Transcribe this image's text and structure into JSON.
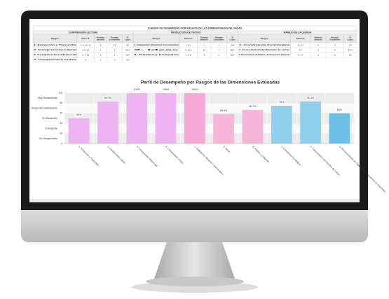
{
  "table": {
    "title": "CUADRO DE DESEMPEÑO POR RASGOS DE LAS DIMENSIONES EVALUADAS",
    "sections": [
      {
        "title": "COMPRENSIÓN LECTORA",
        "columns": [
          "Rasgos",
          "Items N°",
          "Puntaje Máximo",
          "Puntaje Estudiante",
          "% Logro"
        ],
        "rows": [
          [
            "1. Extracción y Transcribir",
            "2, 9, 10, 14",
            "9",
            "4.5",
            "50"
          ],
          [
            "2. Comprensión Literal",
            "4, 6, 15",
            "6",
            "5",
            "83.3"
          ],
          [
            "3. Comprensión Inferencial",
            "3, 7, 13",
            "6",
            "6",
            "100"
          ],
          [
            "4. Comprensión Crítica",
            "8",
            "2",
            "2",
            "100"
          ]
        ]
      },
      {
        "title": "PRODUCCIÓN DE TEXTOS",
        "columns": [
          "Rasgos",
          "Items N°",
          "Puntaje Máximo",
          "Puntaje Estudiante",
          "% Logro"
        ],
        "rows": [
          [
            "1. Adaptación Situación Comunicativa",
            "1, 8.1",
            "1",
            "1",
            "100"
          ],
          [
            "2. Ideas",
            "1, 10.1",
            "12",
            "7",
            "58.3"
          ],
          [
            "3. Fluidez y Cohesión",
            "1, 6.6",
            "3",
            "2",
            "66.7"
          ]
        ]
      },
      {
        "title": "MANEJO DE LA LENGUA",
        "columns": [
          "Rasgos",
          "Items N°",
          "Puntaje Máximo",
          "Puntaje Estudiante",
          "% Logro"
        ],
        "rows": [
          [
            "1. Conciencia Fonológica",
            "11, 12",
            "4",
            "3",
            "75"
          ],
          [
            "2. Conocimiento del Nombre de Letras",
            "16",
            "6",
            "5",
            "83.3"
          ],
          [
            "3. Reconocimiento de Palabras y de Secuencia de Oraciones",
            "5, 17",
            "5",
            "3",
            "60"
          ]
        ]
      }
    ]
  },
  "chart_data": {
    "type": "bar",
    "title": "Perfil de Desempeño por Rasgos de las Dimensiones Evaluadas",
    "categories": [
      "1. Extracción y Transcribir",
      "2. Comprensión Literal",
      "3. Comprensión Inferencial",
      "4. Comprensión Crítica",
      "1. Adaptación Situación Comunicativa",
      "2. Ideas",
      "3. Fluidez y Cohesión",
      "1. Conciencia Fonológica",
      "2. Conocimiento del Nombre de Letras",
      "3. Reconocimiento de Palabras y de Secuencia de Oraciones"
    ],
    "values": [
      50,
      83.3,
      100,
      100,
      100,
      58.3,
      66.7,
      75,
      83.3,
      60
    ],
    "value_labels": [
      "50%",
      "83.3%",
      "100%",
      "100%",
      "100%",
      "58.3%",
      "66.7%",
      "75%",
      "83.3%",
      "60%"
    ],
    "colors": [
      "#eeb4f2",
      "#eeb4f2",
      "#eeb4f2",
      "#eeb4f2",
      "#f8a9d6",
      "#f6b6da",
      "#f6b6da",
      "#8fd0ec",
      "#8fd0ec",
      "#6fc0e6"
    ],
    "ylim": [
      0,
      100
    ],
    "yticks": [
      0,
      20,
      40,
      60,
      80,
      100
    ],
    "bands": [
      {
        "label": "Muy Desarrollado",
        "from": 80,
        "to": 100
      },
      {
        "label": "Desarrollo Satisfactorio",
        "from": 60,
        "to": 80
      },
      {
        "label": "En Desarrollo",
        "from": 40,
        "to": 60
      },
      {
        "label": "Emergente",
        "from": 20,
        "to": 40
      },
      {
        "label": "No Desarrollado",
        "from": 0,
        "to": 20
      }
    ],
    "grid": true
  }
}
